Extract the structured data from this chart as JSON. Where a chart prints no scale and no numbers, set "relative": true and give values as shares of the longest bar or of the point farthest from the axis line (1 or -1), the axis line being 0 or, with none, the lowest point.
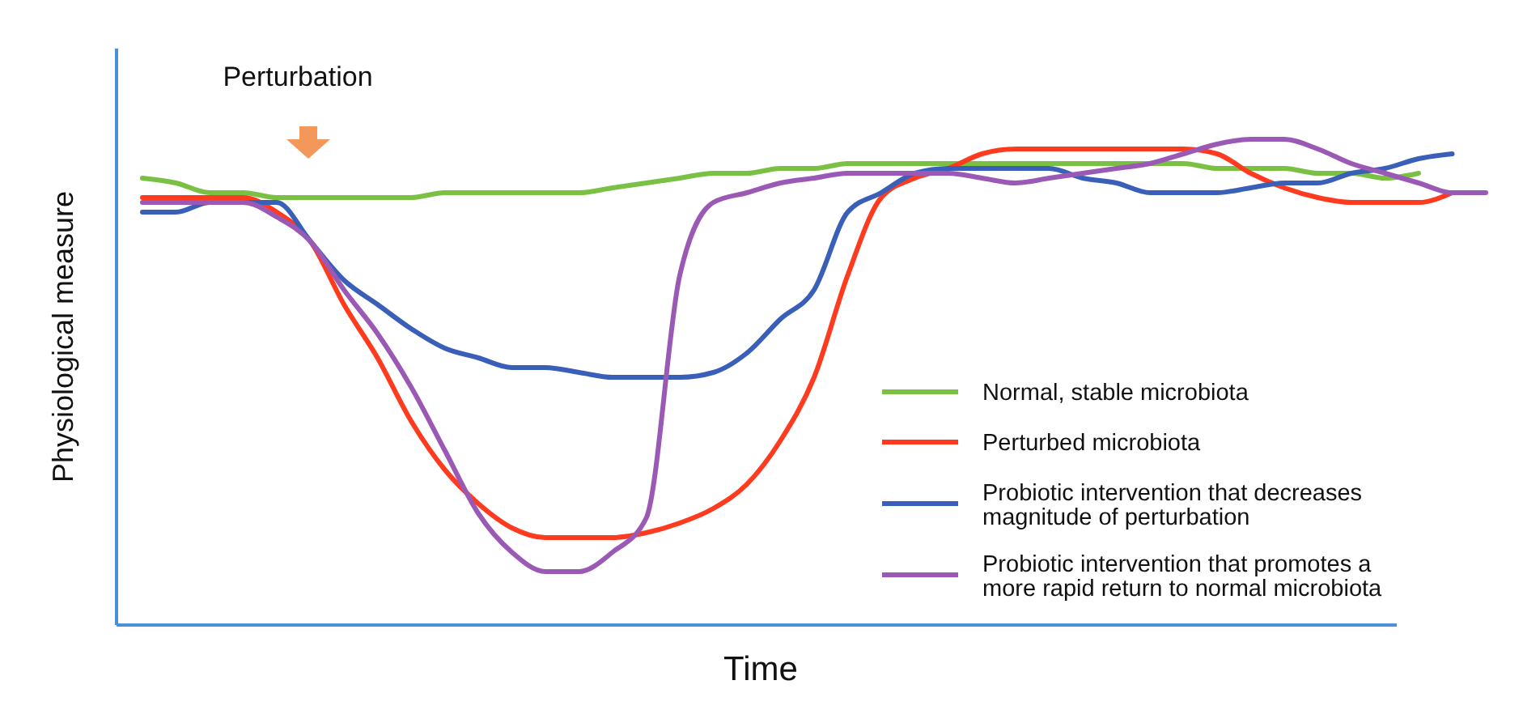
{
  "chart_data": {
    "type": "line",
    "relative": true,
    "xlabel": "Time",
    "ylabel": "Physiological measure",
    "annotations": [
      "Perturbation"
    ],
    "legend": "bottom right",
    "grid": false,
    "categories": [
      null,
      null,
      null,
      null,
      null,
      null,
      null,
      null,
      null,
      null,
      null,
      null,
      null,
      null,
      null,
      null,
      null,
      null,
      null,
      null,
      null,
      null,
      null,
      null,
      null,
      null,
      null,
      null,
      null,
      null,
      null,
      null,
      null,
      null,
      null,
      null,
      null,
      null,
      null,
      null,
      null
    ],
    "series": [
      {
        "name": "Normal, stable microbiota",
        "color": "#7ac143",
        "values": [
          0.92,
          0.91,
          0.89,
          0.89,
          0.88,
          0.88,
          0.88,
          0.88,
          0.88,
          0.89,
          0.89,
          0.89,
          0.89,
          0.89,
          0.9,
          0.91,
          0.92,
          0.93,
          0.93,
          0.94,
          0.94,
          0.95,
          0.95,
          0.95,
          0.95,
          0.95,
          0.95,
          0.95,
          0.95,
          0.95,
          0.95,
          0.95,
          0.94,
          0.94,
          0.94,
          0.93,
          0.93,
          0.92,
          0.93,
          null,
          null
        ]
      },
      {
        "name": "Perturbed microbiota",
        "color": "#ff3b1f",
        "values": [
          0.88,
          0.88,
          0.88,
          0.88,
          0.85,
          0.79,
          0.66,
          0.55,
          0.42,
          0.32,
          0.25,
          0.2,
          0.18,
          0.18,
          0.18,
          0.19,
          0.21,
          0.24,
          0.29,
          0.38,
          0.51,
          0.72,
          0.88,
          0.92,
          0.94,
          0.97,
          0.98,
          0.98,
          0.98,
          0.98,
          0.98,
          0.98,
          0.97,
          0.93,
          0.9,
          0.88,
          0.87,
          0.87,
          0.87,
          0.89,
          null
        ]
      },
      {
        "name": "Probiotic intervention that decreases magnitude of perturbation",
        "color": "#3a5fb8",
        "values": [
          0.85,
          0.85,
          0.87,
          0.87,
          0.87,
          0.79,
          0.71,
          0.66,
          0.61,
          0.57,
          0.55,
          0.53,
          0.53,
          0.52,
          0.51,
          0.51,
          0.51,
          0.52,
          0.56,
          0.63,
          0.69,
          0.85,
          0.89,
          0.93,
          0.94,
          0.94,
          0.94,
          0.94,
          0.92,
          0.91,
          0.89,
          0.89,
          0.89,
          0.9,
          0.91,
          0.91,
          0.93,
          0.94,
          0.96,
          0.97,
          null
        ]
      },
      {
        "name": "Probiotic intervention that promotes a more rapid return to normal microbiota",
        "color": "#9b59b6",
        "values": [
          0.87,
          0.87,
          0.87,
          0.87,
          0.84,
          0.79,
          0.69,
          0.6,
          0.49,
          0.36,
          0.23,
          0.15,
          0.11,
          0.11,
          0.15,
          0.22,
          0.72,
          0.87,
          0.89,
          0.91,
          0.92,
          0.93,
          0.93,
          0.93,
          0.93,
          0.92,
          0.91,
          0.92,
          0.93,
          0.94,
          0.95,
          0.97,
          0.99,
          1.0,
          1.0,
          0.98,
          0.95,
          0.93,
          0.91,
          0.89,
          0.89
        ]
      }
    ]
  }
}
